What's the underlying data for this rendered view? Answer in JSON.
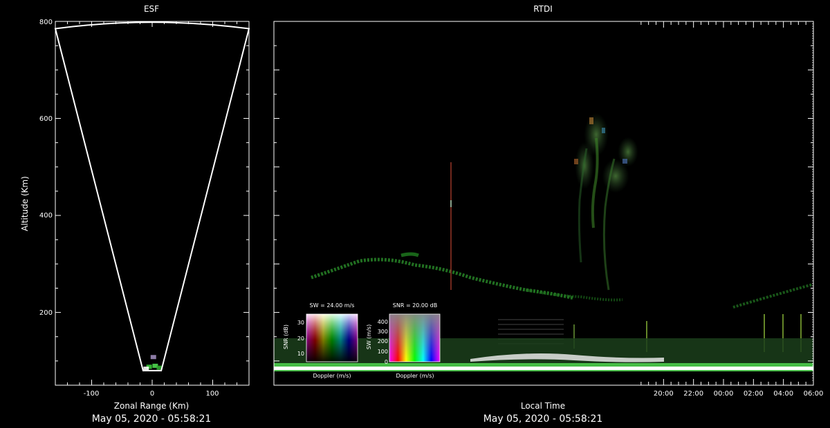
{
  "chart_data": [
    {
      "type": "scatter",
      "title": "ESF",
      "xlabel": "Zonal Range (Km)",
      "ylabel": "Altitude (Km)",
      "xlim": [
        -160,
        160
      ],
      "ylim": [
        50,
        800
      ],
      "x_ticks": [
        -100,
        0,
        100
      ],
      "y_ticks": [
        200,
        400,
        600,
        800
      ],
      "x_tick_labels": [
        "-100",
        "0",
        "100"
      ],
      "y_tick_labels": [
        "200",
        "400",
        "600",
        "800"
      ],
      "beam_fan": {
        "bottom_left": [
          -15,
          80
        ],
        "bottom_right": [
          15,
          80
        ],
        "top_left": [
          -160,
          785
        ],
        "top_right": [
          160,
          785
        ],
        "apex": [
          0,
          800
        ]
      },
      "echoes": [
        {
          "x": -5,
          "y": 88,
          "color": "#39c639"
        },
        {
          "x": 5,
          "y": 90,
          "color": "#4ed84e"
        },
        {
          "x": -10,
          "y": 84,
          "color": "#ffffff"
        },
        {
          "x": 2,
          "y": 108,
          "color": "#9c8ab8"
        },
        {
          "x": 12,
          "y": 86,
          "color": "#2fa92f"
        }
      ],
      "footer": "May 05, 2020 - 05:58:21"
    },
    {
      "type": "heatmap",
      "title": "RTDI",
      "xlabel": "Local Time",
      "ylabel": "",
      "xlim": [
        -6.0,
        30.0
      ],
      "x_start": "18:10",
      "x_end": "06:00",
      "ylim": [
        50,
        800
      ],
      "x_ticks": [
        "20:00",
        "22:00",
        "00:00",
        "02:00",
        "04:00",
        "06:00"
      ],
      "footer": "May 05, 2020 - 05:58:21",
      "echo_regions": [
        {
          "name": "bottomside layer",
          "x": [
            18.2,
            30.0
          ],
          "y": [
            80,
            95
          ],
          "color": "#4ccf4c"
        },
        {
          "name": "valley echoes",
          "x": [
            18.2,
            30.0
          ],
          "y": [
            95,
            130
          ],
          "color": "#2b6b2b"
        },
        {
          "name": "bottom-type layer",
          "x": [
            19.0,
            27.5
          ],
          "y": [
            180,
            330
          ],
          "color": "#33a533"
        },
        {
          "name": "plume",
          "x": [
            24.6,
            26.2
          ],
          "y": [
            150,
            580
          ],
          "color": "#3c8c3c"
        }
      ]
    }
  ],
  "legends": {
    "sw_legend": {
      "title": "SW = 24.00 m/s",
      "ylabel": "SNR (dB)",
      "xlabel": "Doppler (m/s)",
      "y_ticks": [
        "30",
        "20",
        "10"
      ]
    },
    "snr_legend": {
      "title": "SNR = 20.00 dB",
      "ylabel": "SW (m/s)",
      "xlabel": "Doppler (m/s)",
      "y_ticks": [
        "400",
        "300",
        "200",
        "100",
        "0"
      ]
    }
  }
}
